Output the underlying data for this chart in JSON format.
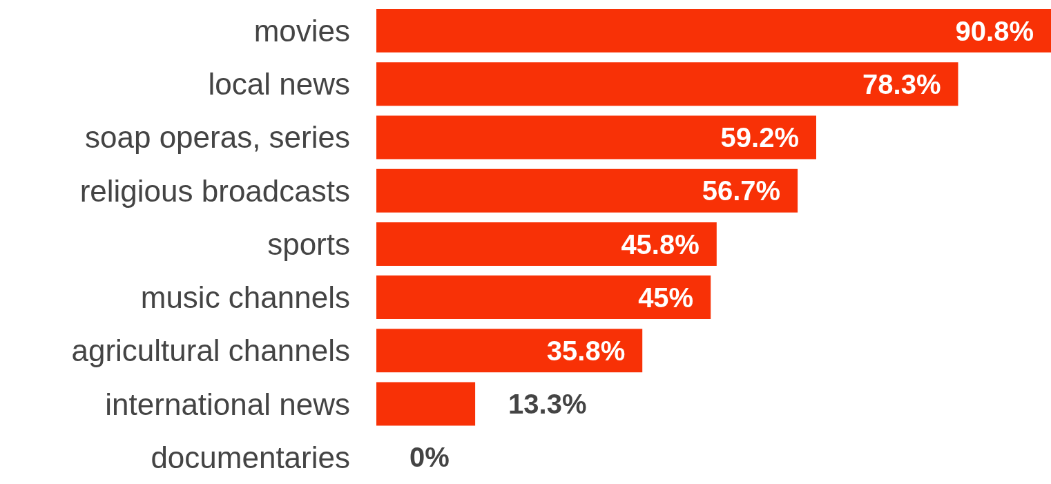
{
  "chart_data": {
    "type": "bar",
    "orientation": "horizontal",
    "categories": [
      "movies",
      "local news",
      "soap operas, series",
      "religious broadcasts",
      "sports",
      "music channels",
      "agricultural channels",
      "international news",
      "documentaries"
    ],
    "values": [
      90.8,
      78.3,
      59.2,
      56.7,
      45.8,
      45,
      35.8,
      13.3,
      0
    ],
    "value_labels": [
      "90.8%",
      "78.3%",
      "59.2%",
      "56.7%",
      "45.8%",
      "45%",
      "35.8%",
      "13.3%",
      "0%"
    ],
    "color": "#f83106"
  }
}
